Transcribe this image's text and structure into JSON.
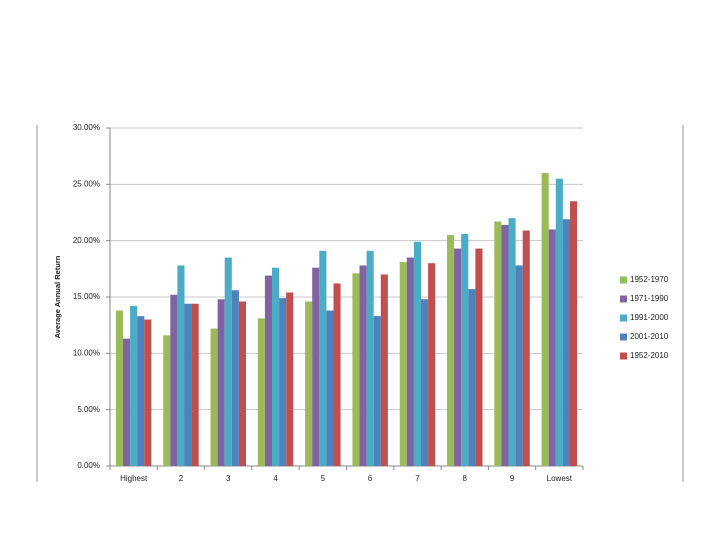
{
  "chart_data": {
    "type": "bar",
    "y_label": "Average Annual Return",
    "categories": [
      "Highest",
      "2",
      "3",
      "4",
      "5",
      "6",
      "7",
      "8",
      "9",
      "Lowest"
    ],
    "series": [
      {
        "name": "1952-1970",
        "color": "#9bbb59",
        "values": [
          13.8,
          11.6,
          12.2,
          13.1,
          14.6,
          17.1,
          18.1,
          20.5,
          21.7,
          26.0
        ]
      },
      {
        "name": "1971-1990",
        "color": "#8064a2",
        "values": [
          11.3,
          15.2,
          14.8,
          16.9,
          17.6,
          17.8,
          18.5,
          19.3,
          21.4,
          21.0
        ]
      },
      {
        "name": "1991-2000",
        "color": "#4bacc6",
        "values": [
          14.2,
          17.8,
          18.5,
          17.6,
          19.1,
          19.1,
          19.9,
          20.6,
          22.0,
          25.5
        ]
      },
      {
        "name": "2001-2010",
        "color": "#4f81bd",
        "values": [
          13.3,
          14.4,
          15.6,
          14.9,
          13.8,
          13.3,
          14.8,
          15.7,
          17.8,
          21.9
        ]
      },
      {
        "name": "1952-2010",
        "color": "#c0504d",
        "values": [
          13.0,
          14.4,
          14.6,
          15.4,
          16.2,
          17.0,
          18.0,
          19.3,
          20.9,
          23.5
        ]
      }
    ],
    "ylim": [
      0,
      30
    ],
    "yticks": [
      {
        "value": 0,
        "label": "0.00%"
      },
      {
        "value": 5,
        "label": "5.00%"
      },
      {
        "value": 10,
        "label": "10.00%"
      },
      {
        "value": 15,
        "label": "15.00%"
      },
      {
        "value": 20,
        "label": "20.00%"
      },
      {
        "value": 25,
        "label": "25.00%"
      },
      {
        "value": 30,
        "label": "30.00%"
      }
    ],
    "grid": true,
    "legend": "right"
  }
}
